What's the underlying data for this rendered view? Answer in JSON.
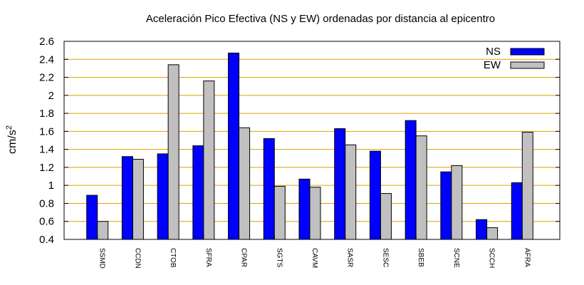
{
  "chart_data": {
    "type": "bar",
    "title": "Aceleración Pico Efectiva (NS y EW) ordenadas por distancia al epicentro",
    "xlabel": "",
    "ylabel": "cm/s",
    "ylabel_superscript": "2",
    "ylim": [
      0.4,
      2.6
    ],
    "yticks": [
      "0.4",
      "0.6",
      "0.8",
      "1",
      "1.2",
      "1.4",
      "1.6",
      "1.8",
      "2",
      "2.2",
      "2.4",
      "2.6"
    ],
    "ytick_values": [
      0.4,
      0.6,
      0.8,
      1.0,
      1.2,
      1.4,
      1.6,
      1.8,
      2.0,
      2.2,
      2.4,
      2.6
    ],
    "grid": true,
    "grid_color": "#e0a000",
    "legend_position": "top-right",
    "categories": [
      "SSMD",
      "CCDN",
      "CTOB",
      "SFRA",
      "CPAR",
      "SGTS",
      "CAVM",
      "SASR",
      "SESC",
      "SBEB",
      "SCNE",
      "SCCH",
      "AFRA"
    ],
    "series": [
      {
        "name": "NS",
        "color": "#0000ff",
        "values": [
          0.89,
          1.32,
          1.35,
          1.44,
          2.47,
          1.52,
          1.07,
          1.63,
          1.38,
          1.72,
          1.15,
          0.62,
          1.03
        ]
      },
      {
        "name": "EW",
        "color": "#c0c0c0",
        "values": [
          0.6,
          1.29,
          2.34,
          2.16,
          1.64,
          0.99,
          0.98,
          1.45,
          0.91,
          1.55,
          1.22,
          0.53,
          1.59
        ]
      }
    ]
  }
}
